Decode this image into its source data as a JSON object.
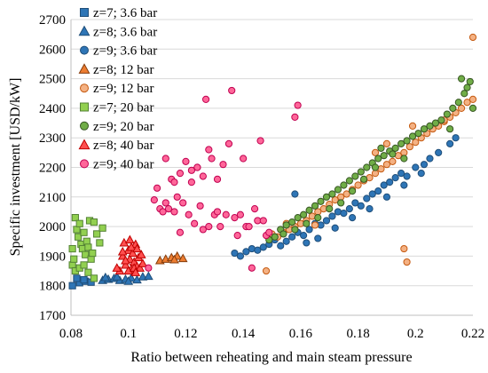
{
  "chart_data": {
    "type": "scatter",
    "title": "",
    "xlabel": "Ratio between reheating and main steam pressure",
    "ylabel": "Specific investment [USD/kW]",
    "xlim": [
      0.08,
      0.22
    ],
    "ylim": [
      1700,
      2700
    ],
    "x_ticks": [
      "0.08",
      "0.1",
      "0.12",
      "0.14",
      "0.16",
      "0.18",
      "0.2",
      "0.22"
    ],
    "y_ticks": [
      "1700",
      "1800",
      "1900",
      "2000",
      "2100",
      "2200",
      "2300",
      "2400",
      "2500",
      "2600",
      "2700"
    ],
    "grid": "y-major",
    "legend_position": "top-left",
    "series": [
      {
        "name": "z=7; 3.6 bar",
        "marker": "square",
        "fill": "#2E75B6",
        "stroke": "#1F4E79",
        "points": [
          [
            0.0805,
            1800
          ],
          [
            0.083,
            1810
          ],
          [
            0.085,
            1815
          ],
          [
            0.087,
            1812
          ],
          [
            0.082,
            1825
          ],
          [
            0.0845,
            1820
          ]
        ]
      },
      {
        "name": "z=8; 3.6 bar",
        "marker": "triangle",
        "fill": "#2E75B6",
        "stroke": "#1F4E79",
        "points": [
          [
            0.091,
            1818
          ],
          [
            0.093,
            1822
          ],
          [
            0.095,
            1825
          ],
          [
            0.097,
            1818
          ],
          [
            0.099,
            1822
          ],
          [
            0.101,
            1826
          ],
          [
            0.103,
            1820
          ],
          [
            0.105,
            1830
          ],
          [
            0.107,
            1832
          ],
          [
            0.096,
            1830
          ],
          [
            0.1,
            1815
          ],
          [
            0.092,
            1828
          ]
        ]
      },
      {
        "name": "z=9; 3.6 bar",
        "marker": "circle",
        "fill": "#2E75B6",
        "stroke": "#1F4E79",
        "points": [
          [
            0.137,
            1910
          ],
          [
            0.139,
            1900
          ],
          [
            0.141,
            1915
          ],
          [
            0.143,
            1925
          ],
          [
            0.145,
            1920
          ],
          [
            0.147,
            1930
          ],
          [
            0.149,
            1940
          ],
          [
            0.151,
            1955
          ],
          [
            0.153,
            1935
          ],
          [
            0.155,
            1950
          ],
          [
            0.157,
            1965
          ],
          [
            0.159,
            1980
          ],
          [
            0.161,
            1970
          ],
          [
            0.163,
            1990
          ],
          [
            0.165,
            2010
          ],
          [
            0.167,
            2005
          ],
          [
            0.169,
            2020
          ],
          [
            0.171,
            2035
          ],
          [
            0.173,
            2050
          ],
          [
            0.175,
            2045
          ],
          [
            0.177,
            2060
          ],
          [
            0.179,
            2080
          ],
          [
            0.181,
            2070
          ],
          [
            0.183,
            2095
          ],
          [
            0.185,
            2110
          ],
          [
            0.187,
            2120
          ],
          [
            0.189,
            2140
          ],
          [
            0.191,
            2150
          ],
          [
            0.193,
            2165
          ],
          [
            0.195,
            2180
          ],
          [
            0.197,
            2170
          ],
          [
            0.2,
            2200
          ],
          [
            0.203,
            2210
          ],
          [
            0.205,
            2230
          ],
          [
            0.208,
            2250
          ],
          [
            0.212,
            2280
          ],
          [
            0.214,
            2300
          ],
          [
            0.158,
            2110
          ],
          [
            0.162,
            1945
          ],
          [
            0.166,
            1960
          ],
          [
            0.172,
            1995
          ],
          [
            0.178,
            2030
          ],
          [
            0.184,
            2060
          ],
          [
            0.19,
            2100
          ],
          [
            0.196,
            2140
          ],
          [
            0.202,
            2180
          ]
        ]
      },
      {
        "name": "z=8; 12 bar",
        "marker": "triangle",
        "fill": "#ED7D31",
        "stroke": "#843C0C",
        "points": [
          [
            0.111,
            1885
          ],
          [
            0.113,
            1890
          ],
          [
            0.115,
            1895
          ],
          [
            0.117,
            1900
          ],
          [
            0.119,
            1892
          ],
          [
            0.116,
            1888
          ]
        ]
      },
      {
        "name": "z=9; 12 bar",
        "marker": "circle",
        "fill": "#F4B183",
        "stroke": "#C55A11",
        "points": [
          [
            0.148,
            1850
          ],
          [
            0.15,
            1975
          ],
          [
            0.152,
            1965
          ],
          [
            0.154,
            1980
          ],
          [
            0.156,
            1990
          ],
          [
            0.158,
            2000
          ],
          [
            0.16,
            2010
          ],
          [
            0.162,
            2020
          ],
          [
            0.164,
            2035
          ],
          [
            0.166,
            2050
          ],
          [
            0.168,
            2060
          ],
          [
            0.17,
            2075
          ],
          [
            0.172,
            2090
          ],
          [
            0.174,
            2100
          ],
          [
            0.176,
            2110
          ],
          [
            0.178,
            2125
          ],
          [
            0.18,
            2140
          ],
          [
            0.182,
            2155
          ],
          [
            0.184,
            2165
          ],
          [
            0.186,
            2180
          ],
          [
            0.188,
            2195
          ],
          [
            0.19,
            2210
          ],
          [
            0.192,
            2220
          ],
          [
            0.194,
            2240
          ],
          [
            0.196,
            2250
          ],
          [
            0.198,
            2270
          ],
          [
            0.2,
            2285
          ],
          [
            0.202,
            2300
          ],
          [
            0.204,
            2315
          ],
          [
            0.206,
            2330
          ],
          [
            0.208,
            2340
          ],
          [
            0.21,
            2355
          ],
          [
            0.212,
            2370
          ],
          [
            0.214,
            2385
          ],
          [
            0.216,
            2400
          ],
          [
            0.218,
            2420
          ],
          [
            0.22,
            2430
          ],
          [
            0.22,
            2640
          ],
          [
            0.197,
            1880
          ],
          [
            0.196,
            1925
          ],
          [
            0.186,
            2250
          ],
          [
            0.19,
            2280
          ],
          [
            0.199,
            2340
          ],
          [
            0.21,
            2360
          ],
          [
            0.155,
            2010
          ],
          [
            0.165,
            2005
          ]
        ]
      },
      {
        "name": "z=7; 20 bar",
        "marker": "square",
        "fill": "#92D050",
        "stroke": "#548235",
        "points": [
          [
            0.0805,
            1870
          ],
          [
            0.081,
            1890
          ],
          [
            0.0815,
            2030
          ],
          [
            0.082,
            1990
          ],
          [
            0.0825,
            1965
          ],
          [
            0.083,
            2010
          ],
          [
            0.0835,
            1940
          ],
          [
            0.084,
            1925
          ],
          [
            0.0845,
            1980
          ],
          [
            0.085,
            1905
          ],
          [
            0.0855,
            1950
          ],
          [
            0.086,
            1930
          ],
          [
            0.0865,
            2020
          ],
          [
            0.087,
            1890
          ],
          [
            0.0875,
            1910
          ],
          [
            0.088,
            2015
          ],
          [
            0.089,
            1975
          ],
          [
            0.09,
            1945
          ],
          [
            0.091,
            1995
          ],
          [
            0.0815,
            1850
          ],
          [
            0.083,
            1860
          ],
          [
            0.0845,
            1870
          ],
          [
            0.086,
            1845
          ],
          [
            0.088,
            1825
          ],
          [
            0.0805,
            1925
          ]
        ]
      },
      {
        "name": "z=9; 20 bar",
        "marker": "circle",
        "fill": "#70AD47",
        "stroke": "#375623",
        "points": [
          [
            0.149,
            1955
          ],
          [
            0.151,
            1965
          ],
          [
            0.153,
            1990
          ],
          [
            0.155,
            2005
          ],
          [
            0.157,
            2015
          ],
          [
            0.159,
            2030
          ],
          [
            0.161,
            2040
          ],
          [
            0.163,
            2055
          ],
          [
            0.165,
            2070
          ],
          [
            0.167,
            2085
          ],
          [
            0.169,
            2100
          ],
          [
            0.171,
            2110
          ],
          [
            0.173,
            2125
          ],
          [
            0.175,
            2140
          ],
          [
            0.177,
            2155
          ],
          [
            0.179,
            2170
          ],
          [
            0.181,
            2185
          ],
          [
            0.183,
            2200
          ],
          [
            0.185,
            2215
          ],
          [
            0.187,
            2230
          ],
          [
            0.189,
            2240
          ],
          [
            0.191,
            2255
          ],
          [
            0.193,
            2265
          ],
          [
            0.195,
            2280
          ],
          [
            0.197,
            2290
          ],
          [
            0.199,
            2305
          ],
          [
            0.201,
            2315
          ],
          [
            0.203,
            2330
          ],
          [
            0.205,
            2340
          ],
          [
            0.207,
            2350
          ],
          [
            0.209,
            2360
          ],
          [
            0.211,
            2380
          ],
          [
            0.213,
            2400
          ],
          [
            0.215,
            2420
          ],
          [
            0.217,
            2450
          ],
          [
            0.218,
            2470
          ],
          [
            0.219,
            2490
          ],
          [
            0.22,
            2400
          ],
          [
            0.216,
            2500
          ],
          [
            0.212,
            2330
          ],
          [
            0.186,
            2200
          ],
          [
            0.182,
            2160
          ],
          [
            0.178,
            2120
          ],
          [
            0.174,
            2080
          ],
          [
            0.17,
            2060
          ],
          [
            0.166,
            2030
          ],
          [
            0.162,
            2010
          ],
          [
            0.158,
            1990
          ],
          [
            0.154,
            1975
          ],
          [
            0.188,
            2265
          ],
          [
            0.192,
            2245
          ],
          [
            0.196,
            2230
          ]
        ]
      },
      {
        "name": "z=8; 40 bar",
        "marker": "triangle",
        "fill": "#FF5050",
        "stroke": "#C00000",
        "points": [
          [
            0.097,
            1850
          ],
          [
            0.098,
            1900
          ],
          [
            0.099,
            1870
          ],
          [
            0.1,
            1920
          ],
          [
            0.1005,
            1890
          ],
          [
            0.101,
            1855
          ],
          [
            0.1015,
            1910
          ],
          [
            0.102,
            1880
          ],
          [
            0.1025,
            1940
          ],
          [
            0.103,
            1865
          ],
          [
            0.1035,
            1895
          ],
          [
            0.104,
            1860
          ],
          [
            0.1045,
            1905
          ],
          [
            0.105,
            1875
          ],
          [
            0.0985,
            1945
          ],
          [
            0.1,
            1850
          ],
          [
            0.102,
            1860
          ],
          [
            0.101,
            1930
          ],
          [
            0.099,
            1885
          ],
          [
            0.103,
            1925
          ],
          [
            0.096,
            1860
          ],
          [
            0.1005,
            1955
          ],
          [
            0.1025,
            1845
          ],
          [
            0.098,
            1915
          ]
        ]
      },
      {
        "name": "z=9; 40 bar",
        "marker": "circle",
        "fill": "#FF6699",
        "stroke": "#C00050",
        "points": [
          [
            0.107,
            1860
          ],
          [
            0.109,
            2090
          ],
          [
            0.11,
            2130
          ],
          [
            0.111,
            2060
          ],
          [
            0.112,
            2050
          ],
          [
            0.113,
            2080
          ],
          [
            0.114,
            2060
          ],
          [
            0.115,
            2160
          ],
          [
            0.116,
            2050
          ],
          [
            0.117,
            2100
          ],
          [
            0.118,
            2180
          ],
          [
            0.119,
            2080
          ],
          [
            0.12,
            2220
          ],
          [
            0.121,
            2040
          ],
          [
            0.122,
            2150
          ],
          [
            0.123,
            2010
          ],
          [
            0.124,
            2200
          ],
          [
            0.125,
            2070
          ],
          [
            0.126,
            1990
          ],
          [
            0.127,
            2430
          ],
          [
            0.128,
            2260
          ],
          [
            0.129,
            2230
          ],
          [
            0.13,
            2040
          ],
          [
            0.131,
            2160
          ],
          [
            0.132,
            2000
          ],
          [
            0.133,
            2210
          ],
          [
            0.134,
            2040
          ],
          [
            0.135,
            2280
          ],
          [
            0.136,
            2460
          ],
          [
            0.137,
            2030
          ],
          [
            0.138,
            1970
          ],
          [
            0.139,
            2040
          ],
          [
            0.14,
            2230
          ],
          [
            0.141,
            2000
          ],
          [
            0.142,
            2000
          ],
          [
            0.143,
            1860
          ],
          [
            0.144,
            2060
          ],
          [
            0.145,
            2020
          ],
          [
            0.146,
            2290
          ],
          [
            0.147,
            2020
          ],
          [
            0.148,
            1970
          ],
          [
            0.149,
            1980
          ],
          [
            0.159,
            2410
          ],
          [
            0.158,
            2370
          ],
          [
            0.113,
            2230
          ],
          [
            0.118,
            1980
          ],
          [
            0.124,
            2200
          ],
          [
            0.128,
            2000
          ],
          [
            0.131,
            2050
          ],
          [
            0.116,
            2150
          ],
          [
            0.122,
            2190
          ],
          [
            0.126,
            2170
          ]
        ]
      }
    ]
  }
}
